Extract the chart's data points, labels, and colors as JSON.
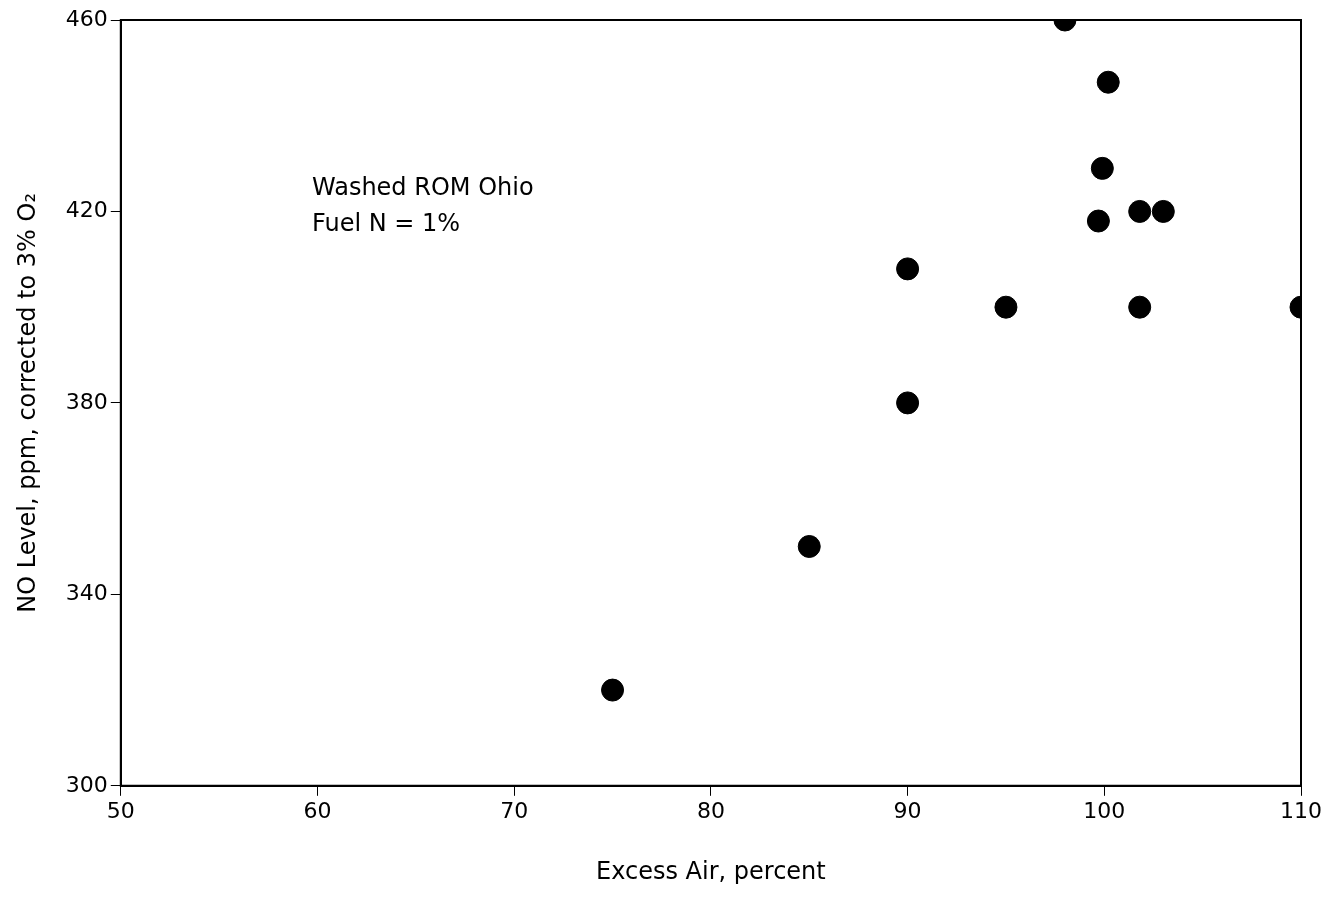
{
  "chart_data": {
    "type": "scatter",
    "xlabel": "Excess Air, percent",
    "ylabel": "NO Level, ppm, corrected to 3% O₂",
    "annotations": [
      "Washed ROM Ohio",
      "Fuel N = 1%"
    ],
    "series": [
      {
        "color": "#000000",
        "x": [
          98,
          100.2,
          99.9,
          99.7,
          101.8,
          103,
          101.8,
          90,
          95,
          90,
          85,
          75,
          110
        ],
        "values": [
          460,
          447,
          429,
          418,
          420,
          420,
          400,
          408,
          400,
          380,
          350,
          320,
          400
        ]
      }
    ],
    "xlim": [
      50,
      110
    ],
    "xticks": [
      50,
      60,
      70,
      80,
      90,
      100,
      110
    ],
    "ylim": [
      300,
      460
    ],
    "yticks": [
      300,
      340,
      380,
      420,
      460
    ],
    "grid": false,
    "legend": false,
    "marker": "circle"
  }
}
